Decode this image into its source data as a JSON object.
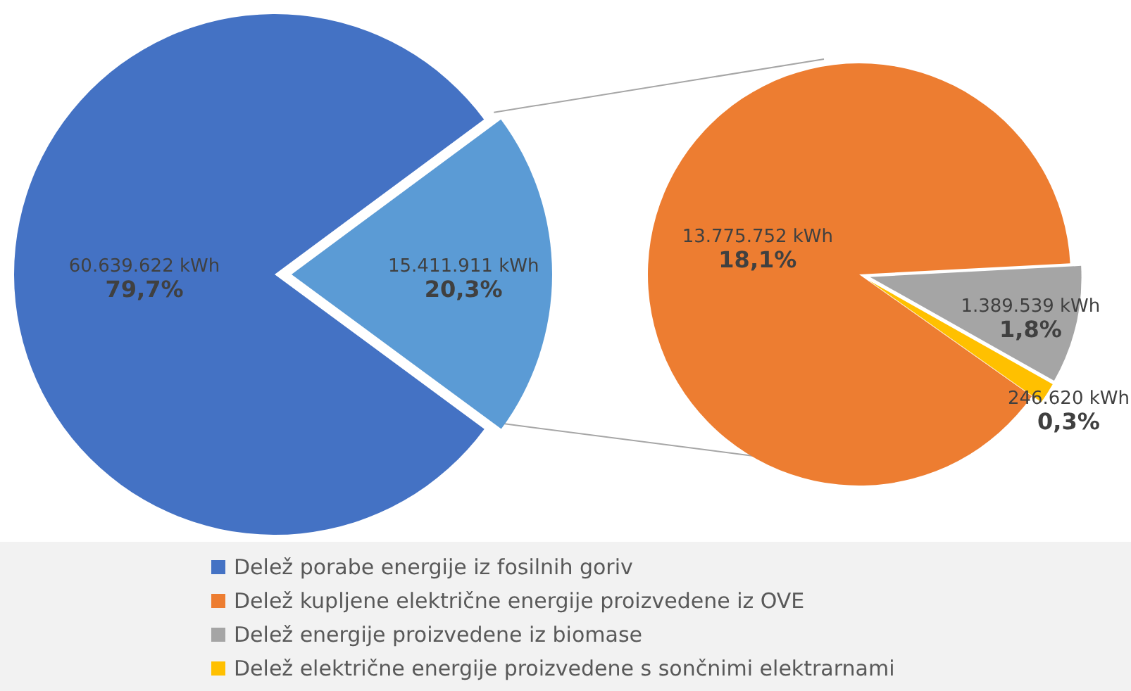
{
  "chart_data": [
    {
      "type": "pie",
      "categories": [
        "Delež porabe energije iz fosilnih goriv",
        null
      ],
      "values": [
        60639622,
        15411911
      ],
      "colors": [
        "#4472c4",
        "#5b9bd5"
      ],
      "value_labels": [
        "60.639.622 kWh",
        "15.411.911 kWh"
      ],
      "annotations": [
        "79,7%",
        "20,3%"
      ],
      "legend": "bottom"
    },
    {
      "type": "pie",
      "categories": [
        "Delež kupljene električne energije proizvedene iz OVE",
        "Delež energije proizvedene iz biomase",
        "Delež električne energije proizvedene s sončnimi elektrarnami"
      ],
      "values": [
        13775752,
        1389539,
        246620
      ],
      "colors": [
        "#ed7d31",
        "#a5a5a5",
        "#ffc000"
      ],
      "value_labels": [
        "13.775.752 kWh",
        "1.389.539 kWh",
        "246.620 kWh"
      ],
      "annotations": [
        "18,1%",
        "1,8%",
        "0,3%"
      ],
      "legend": "bottom"
    }
  ]
}
